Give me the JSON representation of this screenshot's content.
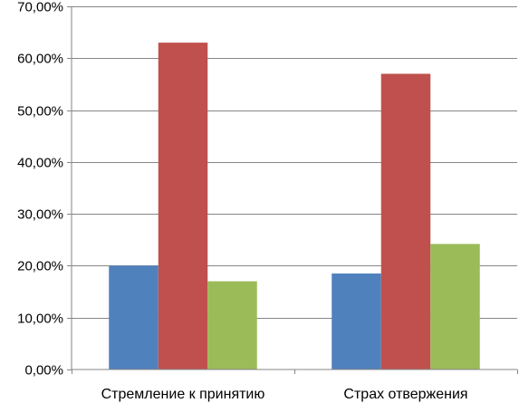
{
  "chart_data": {
    "type": "bar",
    "categories": [
      "Стремление к принятию",
      "Страх отвержения"
    ],
    "series": [
      {
        "values": [
          20.0,
          18.5
        ],
        "color": "#4F81BD"
      },
      {
        "values": [
          63.0,
          57.0
        ],
        "color": "#C0504D"
      },
      {
        "values": [
          17.0,
          24.2
        ],
        "color": "#9BBB59"
      }
    ],
    "yticks": [
      "0,00%",
      "10,00%",
      "20,00%",
      "30,00%",
      "40,00%",
      "50,00%",
      "60,00%",
      "70,00%"
    ],
    "ylim": [
      0,
      70
    ],
    "grid": true,
    "legend": "none"
  }
}
